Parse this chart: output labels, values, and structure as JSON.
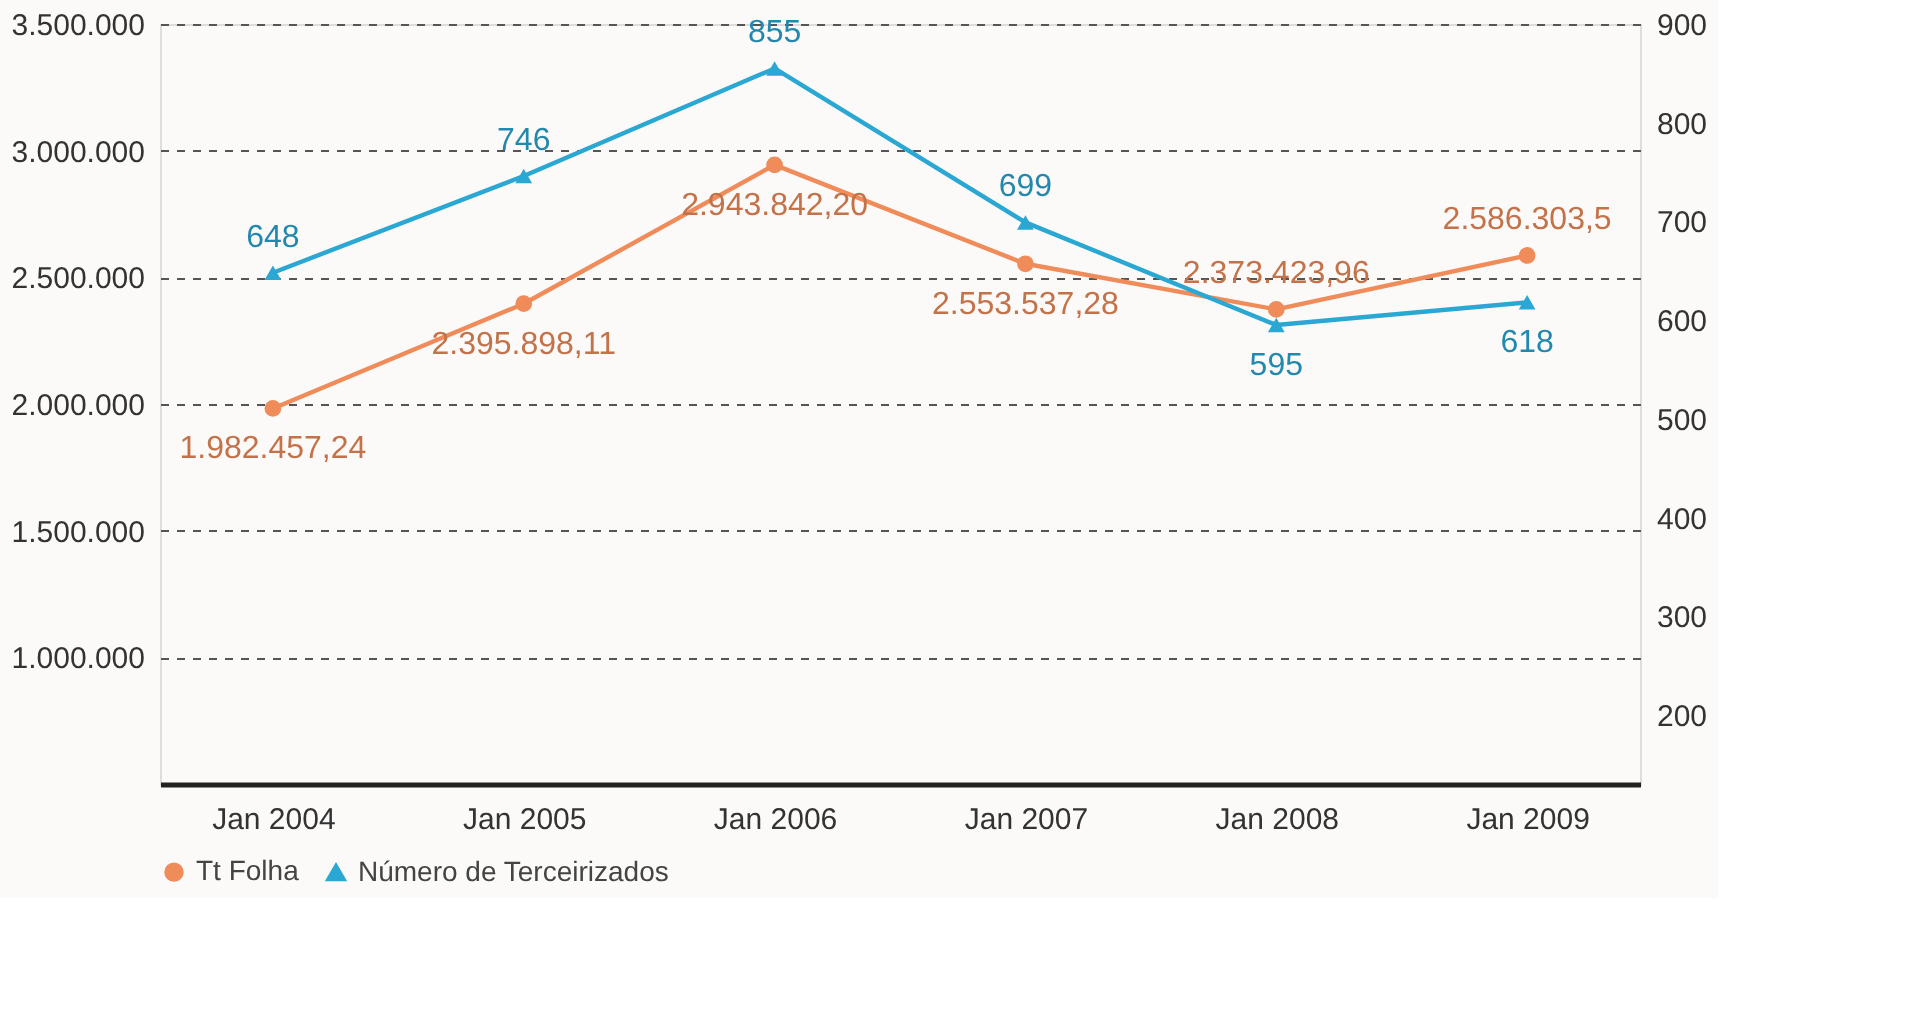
{
  "chart_data": {
    "type": "line",
    "categories": [
      "Jan 2004",
      "Jan 2005",
      "Jan 2006",
      "Jan 2007",
      "Jan 2008",
      "Jan 2009"
    ],
    "series": [
      {
        "name": "Tt Folha",
        "color": "#ef8c5a",
        "marker": "circle",
        "values": [
          1982457.24,
          2395898.11,
          2943842.2,
          2553537.28,
          2373423.96,
          2586303.5
        ],
        "value_labels": [
          "1.982.457,24",
          "2.395.898,11",
          "2.943.842,20",
          "2.553.537,28",
          "2.373.423,96",
          "2.586.303,5"
        ]
      },
      {
        "name": "Número de Terceirizados",
        "color": "#2ba7d3",
        "marker": "triangle",
        "axis": "y2",
        "values": [
          648,
          746,
          855,
          699,
          595,
          618
        ],
        "data_labels": true
      }
    ],
    "ylim": [
      500000,
      3500000
    ],
    "yticks": [
      {
        "value": 1000000,
        "label": "1.000.000"
      },
      {
        "value": 1500000,
        "label": "1.500.000"
      },
      {
        "value": 2000000,
        "label": "2.000.000"
      },
      {
        "value": 2500000,
        "label": "2.500.000"
      },
      {
        "value": 3000000,
        "label": "3.000.000"
      },
      {
        "value": 3500000,
        "label": "3.500.000"
      }
    ],
    "y2lim": [
      130,
      900
    ],
    "y2ticks": [
      200,
      300,
      400,
      500,
      600,
      700,
      800,
      900
    ],
    "grid": "y",
    "line_style": "solid",
    "legend": "bottom left"
  }
}
